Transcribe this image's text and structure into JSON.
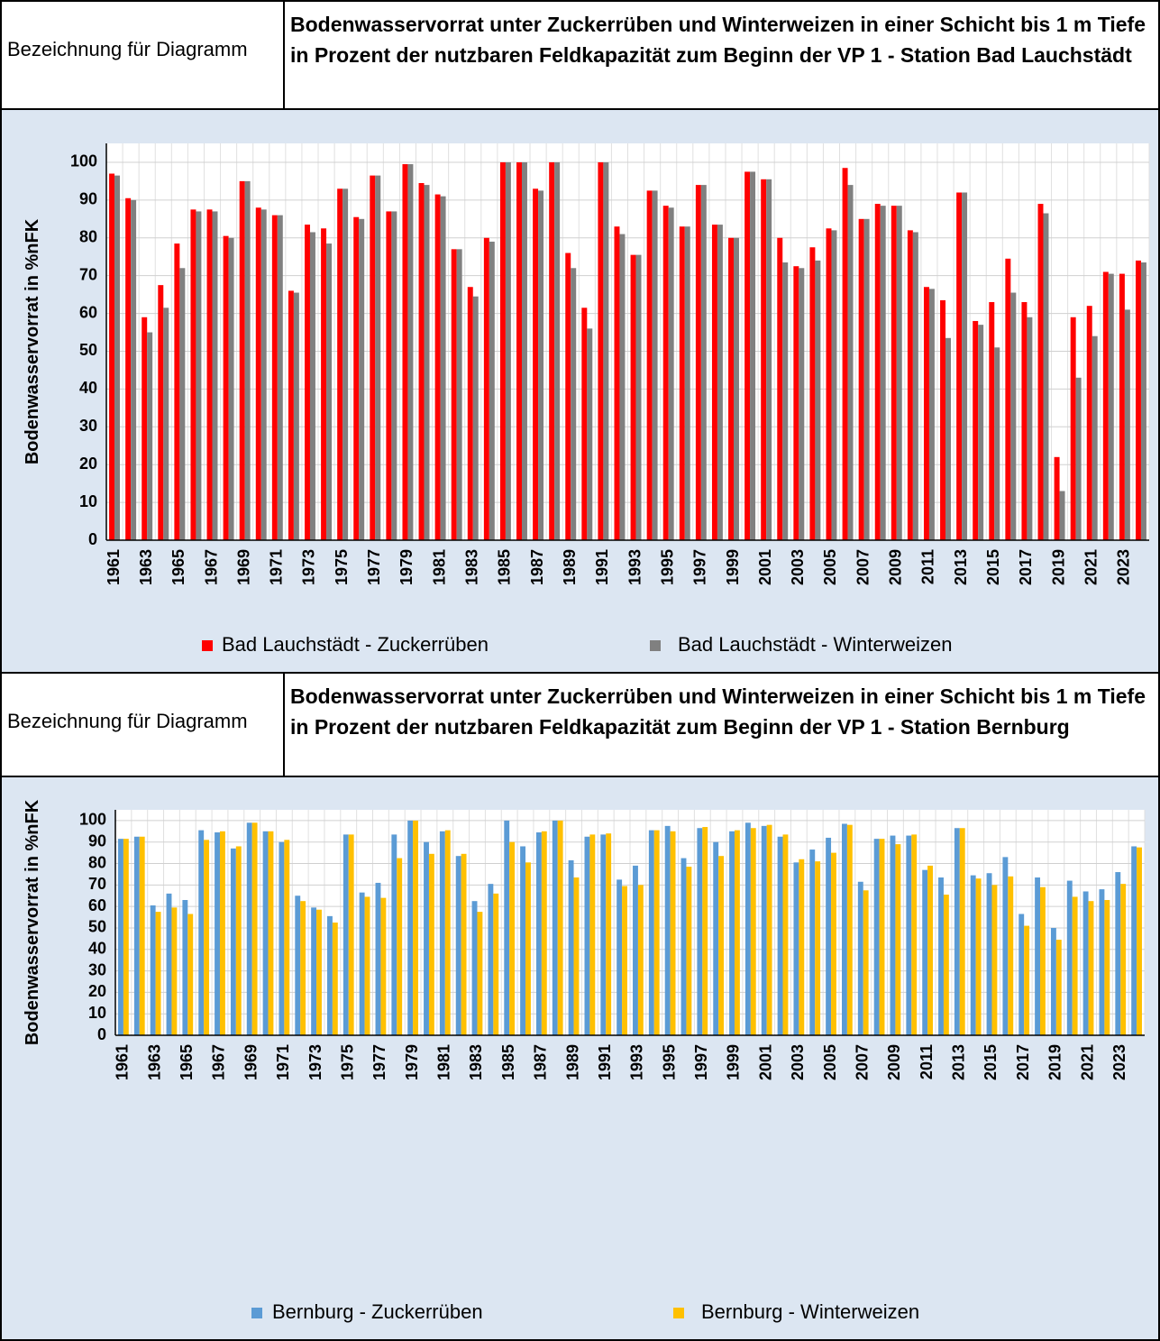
{
  "chart_data": [
    {
      "type": "bar",
      "row_label": "Bezeichnung für Diagramm",
      "title": "Bodenwasservorrat unter Zuckerrüben und Winterweizen in einer Schicht bis 1 m Tiefe in Prozent der nutzbaren Feldkapazität zum Beginn der VP 1 - Station Bad Lauchstädt",
      "y_label": "Bodenwasservorrat in %nFK",
      "categories": [
        1961,
        null,
        1963,
        null,
        1965,
        null,
        1967,
        null,
        1969,
        null,
        1971,
        null,
        1973,
        null,
        1975,
        null,
        1977,
        null,
        1979,
        null,
        1981,
        null,
        1983,
        null,
        1985,
        null,
        1987,
        null,
        1989,
        null,
        1991,
        null,
        1993,
        null,
        1995,
        null,
        1997,
        null,
        1999,
        null,
        2001,
        null,
        2003,
        null,
        2005,
        null,
        2007,
        null,
        2009,
        null,
        2011,
        null,
        2013,
        null,
        2015,
        null,
        2017,
        null,
        2019,
        null,
        2021,
        null,
        2023,
        null
      ],
      "series": [
        {
          "name": "Bad Lauchstädt - Zuckerrüben",
          "color": "#ff0000",
          "values": [
            97,
            90.5,
            59,
            67.5,
            78.5,
            87.5,
            87.5,
            80.5,
            95,
            88,
            86,
            66,
            83.5,
            82.5,
            93,
            85.5,
            96.5,
            87,
            99.5,
            94.5,
            91.5,
            77,
            67,
            80,
            100,
            100,
            93,
            100,
            76,
            61.5,
            100,
            83,
            75.5,
            92.5,
            88.5,
            83,
            94,
            83.5,
            80,
            97.5,
            95.5,
            80,
            72.5,
            77.5,
            82.5,
            98.5,
            85,
            89,
            88.5,
            82,
            67,
            63.5,
            92,
            58,
            63,
            74.5,
            63,
            89,
            22,
            59,
            62,
            71,
            70.5,
            74
          ]
        },
        {
          "name": "Bad Lauchstädt - Winterweizen",
          "color": "#808080",
          "values": [
            96.5,
            90,
            55,
            61.5,
            72,
            87,
            87,
            80,
            95,
            87.5,
            86,
            65.5,
            81.5,
            78.5,
            93,
            85,
            96.5,
            87,
            99.5,
            94,
            91,
            77,
            64.5,
            79,
            100,
            100,
            92.5,
            100,
            72,
            56,
            100,
            81,
            75.5,
            92.5,
            88,
            83,
            94,
            83.5,
            80,
            97.5,
            95.5,
            73.5,
            72,
            74,
            82,
            94,
            85,
            88.5,
            88.5,
            81.5,
            66.5,
            53.5,
            92,
            57,
            51,
            65.5,
            59,
            86.5,
            13,
            43,
            54,
            70.5,
            61,
            73.5
          ]
        }
      ],
      "ylim": [
        0,
        105
      ],
      "yticks": [
        0,
        10,
        20,
        30,
        40,
        50,
        60,
        70,
        80,
        90,
        100
      ],
      "grid": true,
      "legend": "bottom"
    },
    {
      "type": "bar",
      "row_label": "Bezeichnung für Diagramm",
      "title": "Bodenwasservorrat unter Zuckerrüben und Winterweizen in einer Schicht bis 1 m Tiefe in Prozent der nutzbaren Feldkapazität zum Beginn der VP 1 - Station Bernburg",
      "y_label": "Bodenwasservorrat in %nFK",
      "categories": [
        1961,
        null,
        1963,
        null,
        1965,
        null,
        1967,
        null,
        1969,
        null,
        1971,
        null,
        1973,
        null,
        1975,
        null,
        1977,
        null,
        1979,
        null,
        1981,
        null,
        1983,
        null,
        1985,
        null,
        1987,
        null,
        1989,
        null,
        1991,
        null,
        1993,
        null,
        1995,
        null,
        1997,
        null,
        1999,
        null,
        2001,
        null,
        2003,
        null,
        2005,
        null,
        2007,
        null,
        2009,
        null,
        2011,
        null,
        2013,
        null,
        2015,
        null,
        2017,
        null,
        2019,
        null,
        2021,
        null,
        2023,
        null
      ],
      "series": [
        {
          "name": "Bernburg - Zuckerrüben",
          "color": "#5b9bd5",
          "values": [
            91.5,
            92.5,
            60.5,
            66,
            63,
            95.5,
            94.5,
            87,
            99,
            95,
            90,
            65,
            59.5,
            55.5,
            93.5,
            66.5,
            71,
            93.5,
            100,
            90,
            95,
            83.5,
            62.5,
            70.5,
            100,
            88,
            94.5,
            100,
            81.5,
            92.5,
            93.5,
            72.5,
            79,
            95.5,
            97.5,
            82.5,
            96.5,
            90,
            95,
            99,
            97.5,
            92.5,
            80.5,
            86.5,
            92,
            98.5,
            71.5,
            91.5,
            93,
            93,
            77,
            73.5,
            96.5,
            74.5,
            75.5,
            83,
            56.5,
            73.5,
            50,
            72,
            67,
            68,
            76,
            88
          ]
        },
        {
          "name": "Bernburg - Winterweizen",
          "color": "#ffc000",
          "values": [
            91.5,
            92.5,
            57.5,
            59.5,
            56.5,
            91,
            95,
            88,
            99,
            95,
            91,
            62.5,
            58.5,
            52.5,
            93.5,
            64.5,
            64,
            82.5,
            100,
            84.5,
            95.5,
            84.5,
            57.5,
            66,
            90,
            80.5,
            95,
            100,
            73.5,
            93.5,
            94,
            69.5,
            70,
            95.5,
            95,
            78.5,
            97,
            83.5,
            95.5,
            96.5,
            98,
            93.5,
            82,
            81,
            85,
            98,
            67.5,
            91.5,
            89,
            93.5,
            79,
            65.5,
            96.5,
            73,
            70,
            74,
            51,
            69,
            44.5,
            64.5,
            62.5,
            63,
            70.5,
            87.5
          ]
        }
      ],
      "ylim": [
        0,
        105
      ],
      "yticks": [
        0,
        10,
        20,
        30,
        40,
        50,
        60,
        70,
        80,
        90,
        100
      ],
      "grid": true,
      "legend": "bottom"
    }
  ]
}
